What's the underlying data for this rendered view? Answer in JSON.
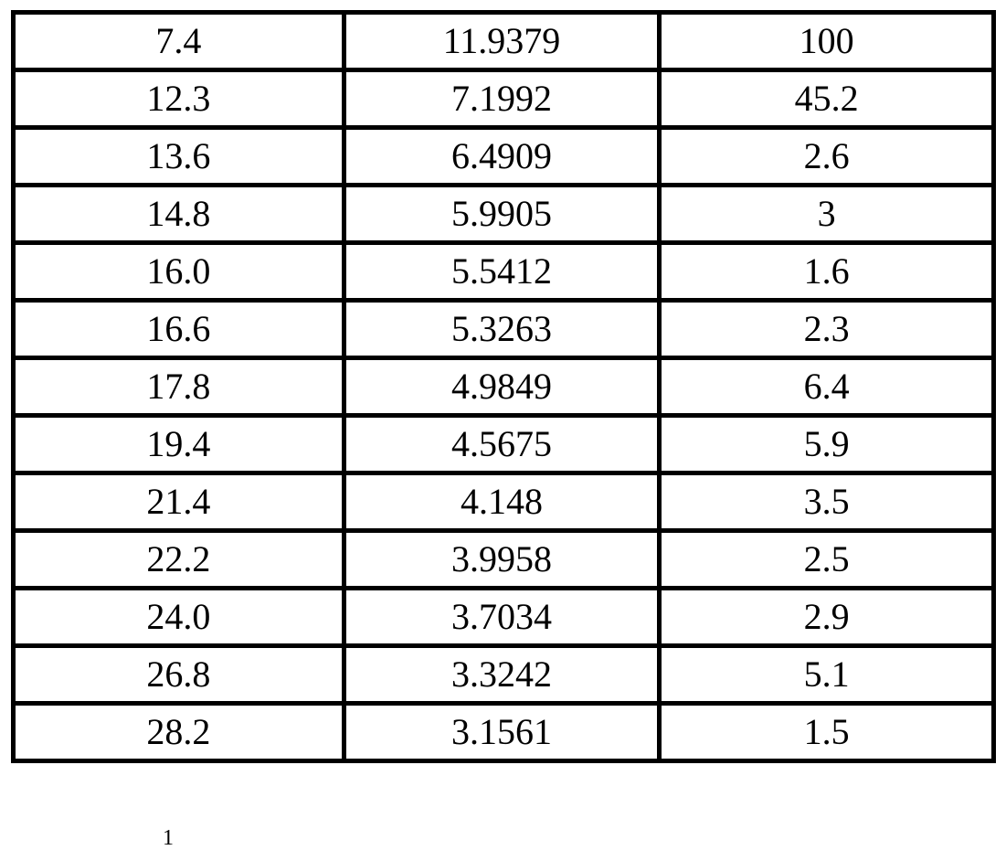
{
  "table": {
    "rows": [
      [
        "7.4",
        "11.9379",
        "100"
      ],
      [
        "12.3",
        "7.1992",
        "45.2"
      ],
      [
        "13.6",
        "6.4909",
        "2.6"
      ],
      [
        "14.8",
        "5.9905",
        "3"
      ],
      [
        "16.0",
        "5.5412",
        "1.6"
      ],
      [
        "16.6",
        "5.3263",
        "2.3"
      ],
      [
        "17.8",
        "4.9849",
        "6.4"
      ],
      [
        "19.4",
        "4.5675",
        "5.9"
      ],
      [
        "21.4",
        "4.148",
        "3.5"
      ],
      [
        "22.2",
        "3.9958",
        "2.5"
      ],
      [
        "24.0",
        "3.7034",
        "2.9"
      ],
      [
        "26.8",
        "3.3242",
        "5.1"
      ],
      [
        "28.2",
        "3.1561",
        "1.5"
      ]
    ]
  },
  "footnote_fragment": "1"
}
